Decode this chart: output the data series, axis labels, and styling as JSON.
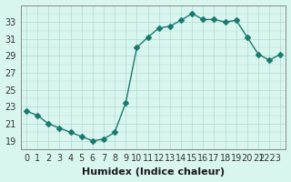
{
  "x": [
    0,
    1,
    2,
    3,
    4,
    5,
    6,
    7,
    8,
    9,
    10,
    11,
    12,
    13,
    14,
    15,
    16,
    17,
    18,
    19,
    20,
    21,
    22,
    23
  ],
  "y": [
    22.5,
    22.0,
    21.0,
    20.5,
    20.0,
    19.5,
    19.0,
    19.2,
    20.0,
    23.5,
    30.0,
    31.2,
    32.3,
    32.5,
    33.2,
    34.0,
    33.3,
    33.3,
    33.0,
    33.2,
    31.2,
    29.2,
    28.5,
    29.2
  ],
  "line_color": "#1a7a6e",
  "marker": "D",
  "marker_size": 3,
  "bg_color": "#d9f5f0",
  "grid_color": "#b0d9d0",
  "xlabel": "Humidex (Indice chaleur)",
  "ylim": [
    18,
    35
  ],
  "xlim": [
    -0.5,
    23.5
  ],
  "yticks": [
    19,
    21,
    23,
    25,
    27,
    29,
    31,
    33
  ],
  "xlabel_fontsize": 8,
  "tick_fontsize": 7.0
}
